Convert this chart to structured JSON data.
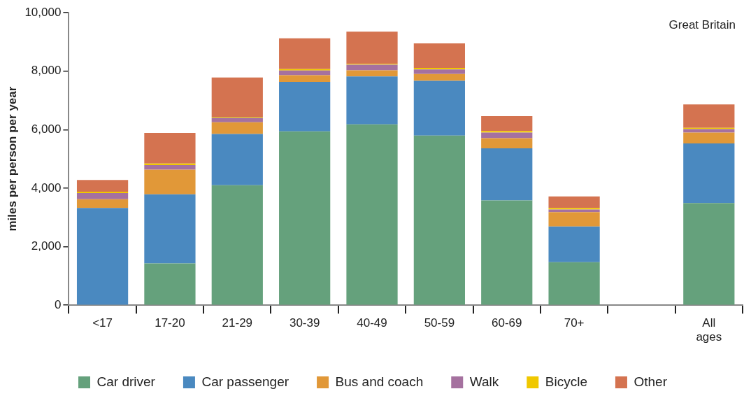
{
  "chart_data": {
    "type": "bar",
    "stacked": true,
    "ylabel": "miles per person per year",
    "annotations": [
      "Great Britain"
    ],
    "categories": [
      "<17",
      "17-20",
      "21-29",
      "30-39",
      "40-49",
      "50-59",
      "60-69",
      "70+",
      null,
      "All ages"
    ],
    "series": [
      {
        "name": "Car driver",
        "color": "#65a17c",
        "values": [
          0,
          1430,
          4100,
          5940,
          6180,
          5800,
          3580,
          1470,
          null,
          3490
        ]
      },
      {
        "name": "Car passenger",
        "color": "#4a89c0",
        "values": [
          3320,
          2360,
          1750,
          1690,
          1640,
          1870,
          1780,
          1220,
          null,
          2040
        ]
      },
      {
        "name": "Bus and coach",
        "color": "#e19838",
        "values": [
          300,
          840,
          400,
          230,
          210,
          230,
          350,
          490,
          null,
          370
        ]
      },
      {
        "name": "Walk",
        "color": "#a5719f",
        "values": [
          210,
          160,
          160,
          160,
          190,
          160,
          190,
          90,
          null,
          120
        ]
      },
      {
        "name": "Bicycle",
        "color": "#f0c800",
        "values": [
          50,
          50,
          30,
          50,
          30,
          50,
          50,
          50,
          null,
          40
        ]
      },
      {
        "name": "Other",
        "color": "#d47350",
        "values": [
          400,
          1050,
          1340,
          1050,
          1100,
          840,
          510,
          400,
          null,
          800
        ]
      }
    ],
    "ylim": [
      0,
      10000
    ],
    "yticks": [
      0,
      {
        "value": 2000,
        "label": "2,000"
      },
      {
        "value": 4000,
        "label": "4,000"
      },
      {
        "value": 6000,
        "label": "6,000"
      },
      {
        "value": 8000,
        "label": "8,000"
      },
      {
        "value": 10000,
        "label": "10,000"
      }
    ],
    "grid": false,
    "legend": "bottom"
  }
}
